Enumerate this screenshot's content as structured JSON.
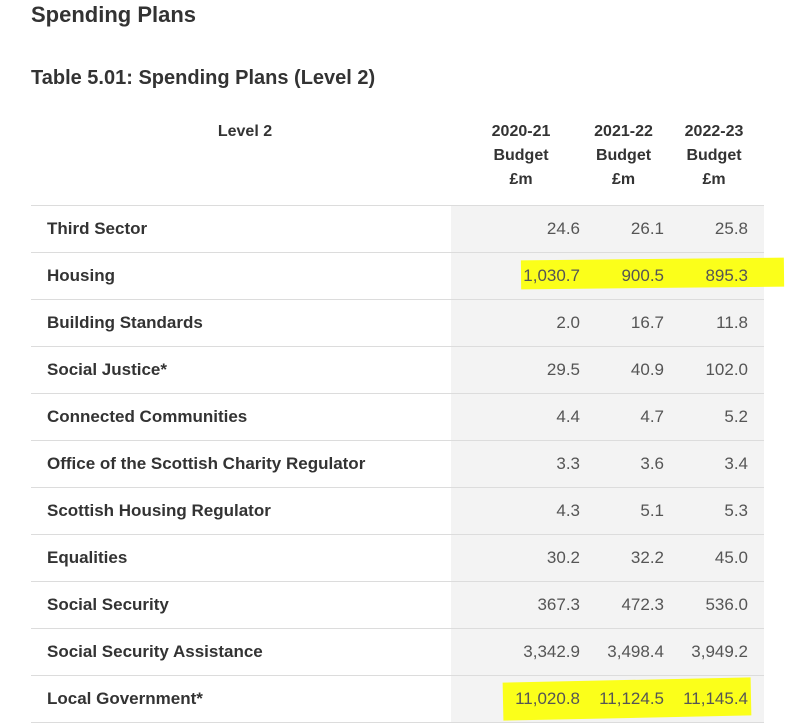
{
  "page": {
    "title": "Spending Plans"
  },
  "table": {
    "title": "Table 5.01: Spending Plans (Level 2)",
    "headers": {
      "name": "Level 2",
      "c1": [
        "2020-21",
        "Budget",
        "£m"
      ],
      "c2": [
        "2021-22",
        "Budget",
        "£m"
      ],
      "c3": [
        "2022-23",
        "Budget",
        "£m"
      ]
    },
    "rows": [
      {
        "name": "Third Sector",
        "v1": "24.6",
        "v2": "26.1",
        "v3": "25.8"
      },
      {
        "name": "Housing",
        "v1": "1,030.7",
        "v2": "900.5",
        "v3": "895.3",
        "highlighted": true
      },
      {
        "name": "Building Standards",
        "v1": "2.0",
        "v2": "16.7",
        "v3": "11.8"
      },
      {
        "name": "Social Justice*",
        "v1": "29.5",
        "v2": "40.9",
        "v3": "102.0"
      },
      {
        "name": "Connected Communities",
        "v1": "4.4",
        "v2": "4.7",
        "v3": "5.2"
      },
      {
        "name": "Office of the Scottish Charity Regulator",
        "v1": "3.3",
        "v2": "3.6",
        "v3": "3.4"
      },
      {
        "name": "Scottish Housing Regulator",
        "v1": "4.3",
        "v2": "5.1",
        "v3": "5.3"
      },
      {
        "name": "Equalities",
        "v1": "30.2",
        "v2": "32.2",
        "v3": "45.0"
      },
      {
        "name": "Social Security",
        "v1": "367.3",
        "v2": "472.3",
        "v3": "536.0"
      },
      {
        "name": "Social Security Assistance",
        "v1": "3,342.9",
        "v2": "3,498.4",
        "v3": "3,949.2"
      },
      {
        "name": "Local Government*",
        "v1": "11,020.8",
        "v2": "11,124.5",
        "v3": "11,145.4",
        "highlighted": true
      }
    ]
  },
  "colors": {
    "highlight": "#fbff1a",
    "number_column_bg": "#f3f3f3",
    "divider": "#dcdcdc"
  }
}
